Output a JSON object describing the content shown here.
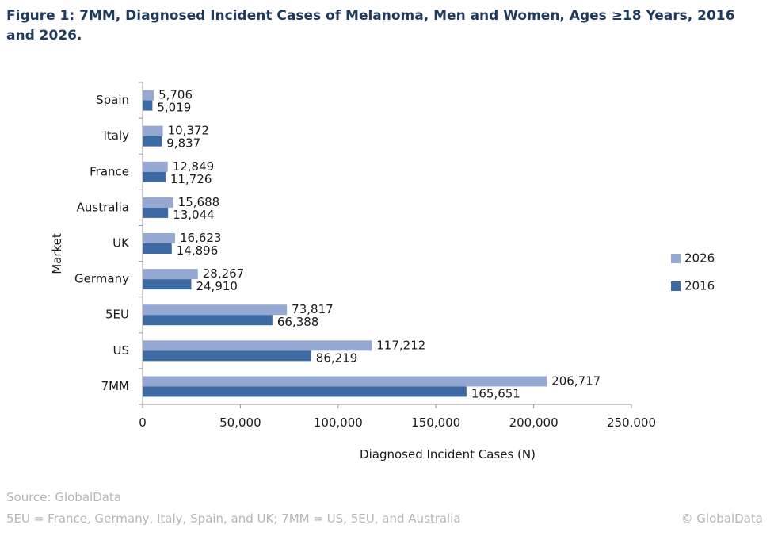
{
  "title": "Figure 1: 7MM, Diagnosed Incident Cases of Melanoma, Men and Women, Ages ≥18 Years, 2016 and 2026.",
  "source": "Source: GlobalData",
  "footnote": "5EU = France, Germany, Italy, Spain, and UK; 7MM = US, 5EU, and Australia",
  "copyright": "© GlobalData",
  "colors": {
    "series_2026": "#95a8d1",
    "series_2016": "#3d6aa3",
    "axis": "#999999"
  },
  "chart_data": {
    "type": "bar",
    "orientation": "horizontal",
    "categories": [
      "Spain",
      "Italy",
      "France",
      "Australia",
      "UK",
      "Germany",
      "5EU",
      "US",
      "7MM"
    ],
    "series": [
      {
        "name": "2026",
        "values": [
          5706,
          10372,
          12849,
          15688,
          16623,
          28267,
          73817,
          117212,
          206717
        ],
        "labels": [
          "5,706",
          "10,372",
          "12,849",
          "15,688",
          "16,623",
          "28,267",
          "73,817",
          "117,212",
          "206,717"
        ]
      },
      {
        "name": "2016",
        "values": [
          5019,
          9837,
          11726,
          13044,
          14896,
          24910,
          66388,
          86219,
          165651
        ],
        "labels": [
          "5,019",
          "9,837",
          "11,726",
          "13,044",
          "14,896",
          "24,910",
          "66,388",
          "86,219",
          "165,651"
        ]
      }
    ],
    "xlabel": "Diagnosed Incident Cases (N)",
    "ylabel": "Market",
    "xlim": [
      0,
      250000
    ],
    "xticks": [
      0,
      50000,
      100000,
      150000,
      200000,
      250000
    ],
    "xtick_labels": [
      "0",
      "50,000",
      "100,000",
      "150,000",
      "200,000",
      "250,000"
    ],
    "grid": false,
    "legend_position": "right"
  }
}
